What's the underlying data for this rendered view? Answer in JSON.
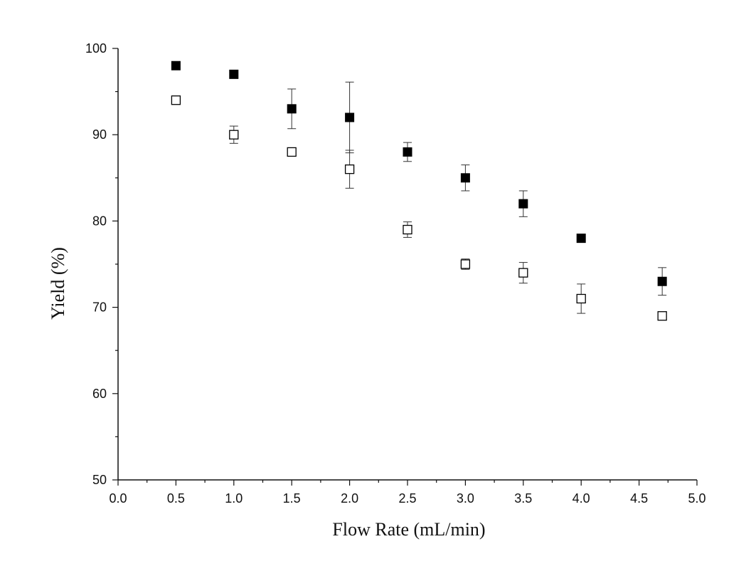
{
  "chart_data": {
    "type": "scatter",
    "title": "",
    "xlabel": "Flow Rate (mL/min)",
    "ylabel": "Yield (%)",
    "xlim": [
      0.0,
      5.0
    ],
    "ylim": [
      50,
      100
    ],
    "x_ticks": [
      "0.0",
      "0.5",
      "1.0",
      "1.5",
      "2.0",
      "2.5",
      "3.0",
      "3.5",
      "4.0",
      "4.5",
      "5.0"
    ],
    "y_ticks": [
      "50",
      "60",
      "70",
      "80",
      "90",
      "100"
    ],
    "grid": false,
    "legend": "none",
    "series": [
      {
        "marker": "filled-square",
        "color": "#000000",
        "x": [
          0.5,
          1.0,
          1.5,
          2.0,
          2.5,
          3.0,
          3.5,
          4.0,
          4.7
        ],
        "y": [
          98,
          97,
          93,
          92,
          88,
          85,
          82,
          78,
          73
        ],
        "err": [
          0,
          0,
          2.3,
          4.1,
          1.1,
          1.5,
          1.5,
          0,
          1.6
        ]
      },
      {
        "marker": "open-square",
        "color": "#000000",
        "x": [
          0.5,
          1.0,
          1.5,
          2.0,
          2.5,
          3.0,
          3.5,
          4.0,
          4.7
        ],
        "y": [
          94,
          90,
          88,
          86,
          79,
          75,
          74,
          71,
          69
        ],
        "err": [
          0,
          1.0,
          0,
          2.2,
          0.9,
          0.6,
          1.2,
          1.7,
          0
        ]
      }
    ]
  }
}
